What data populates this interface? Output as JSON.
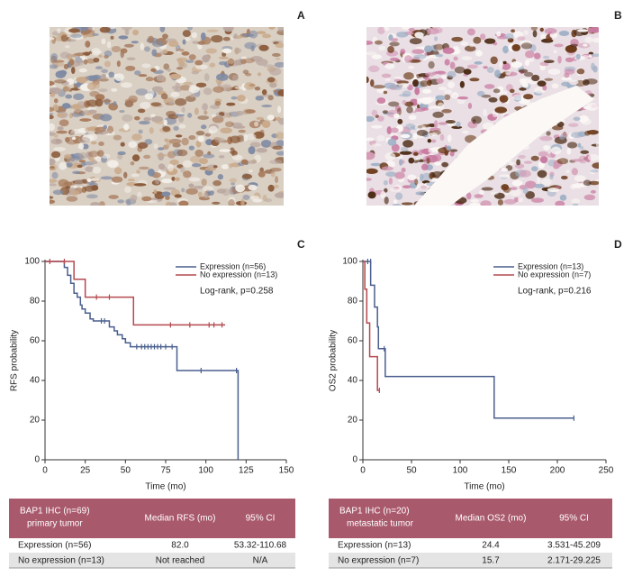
{
  "panels": {
    "a": "A",
    "b": "B"
  },
  "chart_data": [
    {
      "type": "step",
      "letter": "C",
      "xlabel": "Time (mo)",
      "ylabel": "RFS probability",
      "annotation": "Log-rank, p=0.258",
      "xlim": [
        0,
        150
      ],
      "ylim": [
        0,
        100
      ],
      "xticks": [
        0,
        25,
        50,
        75,
        100,
        125,
        150
      ],
      "yticks": [
        0,
        20,
        40,
        60,
        80,
        100
      ],
      "series": [
        {
          "name": "Expression (n=56)",
          "color": "#4a5f8e",
          "x": [
            0,
            12,
            14,
            16,
            18,
            20,
            22,
            23,
            25,
            28,
            30,
            40,
            43,
            45,
            48,
            50,
            53,
            82,
            120
          ],
          "values": [
            100,
            97,
            93,
            89,
            84,
            82,
            78,
            76,
            74,
            71,
            70,
            67,
            65,
            63,
            61,
            59,
            57,
            45,
            0
          ],
          "censored": {
            "x": [
              35,
              37,
              57,
              60,
              62,
              64,
              66,
              68,
              70,
              72,
              75,
              79,
              97,
              119
            ],
            "values": [
              70,
              70,
              57,
              57,
              57,
              57,
              57,
              57,
              57,
              57,
              57,
              57,
              45,
              45
            ]
          }
        },
        {
          "name": "No expression (n=13)",
          "color": "#b5494f",
          "x": [
            0,
            18,
            25,
            55,
            112
          ],
          "values": [
            100,
            91,
            82,
            68,
            68
          ],
          "censored": {
            "x": [
              3,
              12,
              32,
              40,
              78,
              90,
              102,
              105,
              110
            ],
            "values": [
              100,
              100,
              82,
              82,
              68,
              68,
              68,
              68,
              68
            ]
          }
        }
      ]
    },
    {
      "type": "step",
      "letter": "D",
      "xlabel": "Time (mo)",
      "ylabel": "OS2 probability",
      "annotation": "Log-rank, p=0.216",
      "xlim": [
        0,
        250
      ],
      "ylim": [
        0,
        100
      ],
      "xticks": [
        0,
        50,
        100,
        150,
        200,
        250
      ],
      "yticks": [
        0,
        20,
        40,
        60,
        80,
        100
      ],
      "series": [
        {
          "name": "Expression (n=13)",
          "color": "#4a5f8e",
          "x": [
            0,
            8,
            12,
            15,
            16,
            23,
            135,
            217
          ],
          "values": [
            100,
            88,
            77,
            67,
            56,
            42,
            21,
            21
          ],
          "censored": {
            "x": [
              5,
              8,
              22,
              217
            ],
            "values": [
              100,
              100,
              56,
              21
            ]
          }
        },
        {
          "name": "No expression (n=7)",
          "color": "#b5494f",
          "x": [
            0,
            2,
            4,
            7,
            15,
            17
          ],
          "values": [
            100,
            86,
            69,
            52,
            35,
            35
          ],
          "censored": {
            "x": [
              17
            ],
            "values": [
              35
            ]
          }
        }
      ]
    }
  ],
  "tables": [
    {
      "header": [
        [
          "BAP1 IHC (n=69)",
          "primary tumor"
        ],
        [
          "Median RFS (mo)"
        ],
        [
          "95% CI"
        ]
      ],
      "rows": [
        [
          "Expression (n=56)",
          "82.0",
          "53.32-110.68"
        ],
        [
          "No expression (n=13)",
          "Not reached",
          "N/A"
        ]
      ]
    },
    {
      "header": [
        [
          "BAP1 IHC (n=20)",
          "metastatic tumor"
        ],
        [
          "Median OS2 (mo)"
        ],
        [
          "95% CI"
        ]
      ],
      "rows": [
        [
          "Expression (n=13)",
          "24.4",
          "3.531-45.209"
        ],
        [
          "No expression (n=7)",
          "15.7",
          "2.171-29.225"
        ]
      ]
    }
  ]
}
